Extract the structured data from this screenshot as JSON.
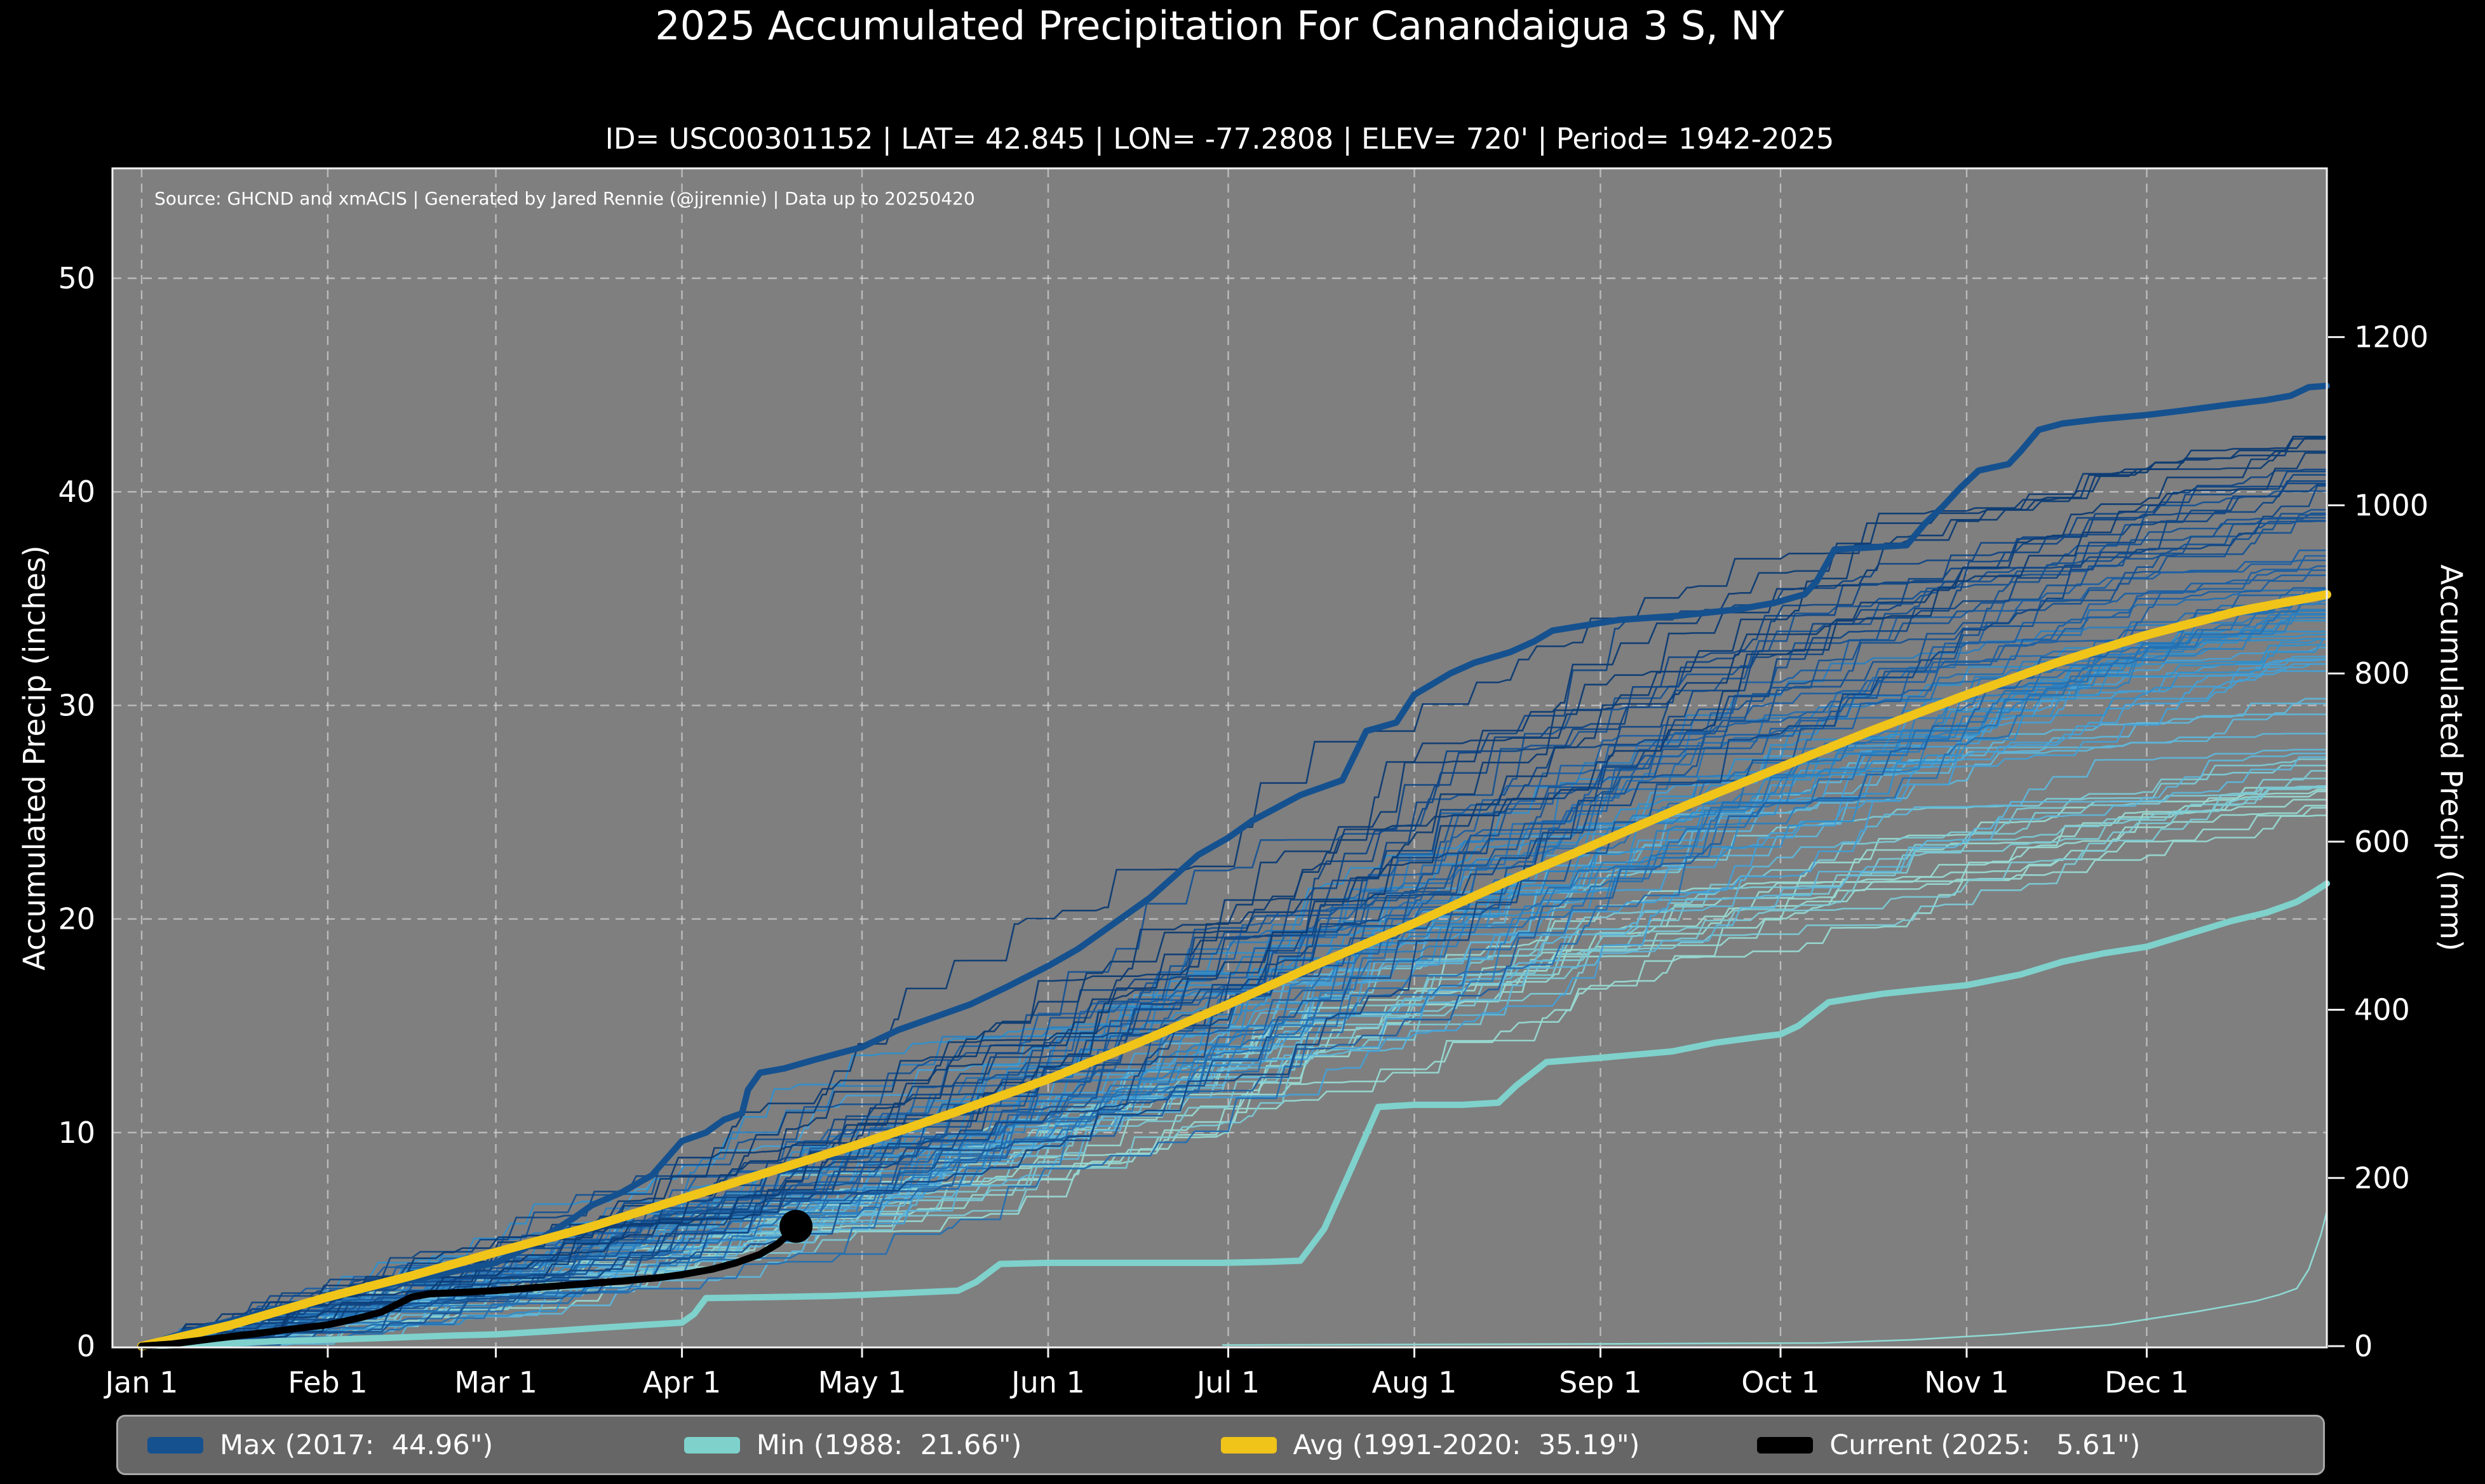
{
  "header": {
    "title": "2025 Accumulated Precipitation For Canandaigua 3 S, NY",
    "subtitle": "ID= USC00301152 | LAT= 42.845 | LON= -77.2808 | ELEV= 720' | Period= 1942-2025"
  },
  "colors": {
    "page_bg": "#000000",
    "plot_bg": "#7f7f7f",
    "gridline": "#dcdcdc",
    "spine": "#f2f2f2",
    "text": "#ffffff",
    "legend_bg": "#666666",
    "legend_border": "#a8a8a8",
    "max_line": "#15518f",
    "min_line": "#7fd1cc",
    "avg_line": "#f0c419",
    "current_line": "#000000"
  },
  "chart_data": {
    "type": "line",
    "title": "2025 Accumulated Precipitation For Canandaigua 3 S, NY",
    "subtitle": "ID= USC00301152 | LAT= 42.845 | LON= -77.2808 | ELEV= 720' | Period= 1942-2025",
    "source_note": "Source: GHCND and xmACIS | Generated by Jared Rennie (@jjrennie) | Data up to 20250420",
    "xlabel": "",
    "ylabel_left": "Accumulated Precip (inches)",
    "ylabel_right": "Accumulated Precip (mm)",
    "x_axis": {
      "tick_labels": [
        "Jan 1",
        "Feb 1",
        "Mar 1",
        "Apr 1",
        "May 1",
        "Jun 1",
        "Jul 1",
        "Aug 1",
        "Sep 1",
        "Oct 1",
        "Nov 1",
        "Dec 1"
      ],
      "tick_days": [
        0,
        31,
        59,
        90,
        120,
        151,
        181,
        212,
        243,
        273,
        304,
        334
      ],
      "total_days": 364
    },
    "y_left": {
      "ticks": [
        0,
        10,
        20,
        30,
        40,
        50
      ],
      "unit": "inches",
      "max_view": 55.2
    },
    "y_right": {
      "ticks": [
        0,
        200,
        400,
        600,
        800,
        1000,
        1200
      ],
      "unit": "mm"
    },
    "grid": true,
    "legend_position": "bottom",
    "series": [
      {
        "key": "max",
        "label": "Max (2017:  44.96\")",
        "color": "#15518f",
        "width": 10,
        "days": [
          0,
          8,
          15,
          22,
          31,
          38,
          45,
          52,
          59,
          64,
          68,
          72,
          75,
          80,
          85,
          90,
          94,
          97,
          100,
          101,
          103,
          107,
          112,
          120,
          126,
          132,
          138,
          144,
          151,
          156,
          160,
          164,
          168,
          172,
          176,
          181,
          185,
          189,
          193,
          198,
          200,
          204,
          209,
          212,
          215,
          218,
          222,
          228,
          232,
          235,
          246,
          256,
          266,
          272,
          277,
          279,
          282,
          294,
          297,
          300,
          303,
          306,
          311,
          313,
          316,
          320,
          326,
          334,
          340,
          348,
          354,
          358,
          361,
          364
        ],
        "values": [
          0,
          0.7,
          1.2,
          1.7,
          2.3,
          2.7,
          3.1,
          3.5,
          3.9,
          4.6,
          5.3,
          6.0,
          6.6,
          7.2,
          8.0,
          9.6,
          10.0,
          10.6,
          10.9,
          12.0,
          12.8,
          13.0,
          13.4,
          14.0,
          14.8,
          15.4,
          16.0,
          16.8,
          17.8,
          18.6,
          19.4,
          20.2,
          21.0,
          22.0,
          23.0,
          23.8,
          24.6,
          25.2,
          25.8,
          26.3,
          26.5,
          28.8,
          29.2,
          30.5,
          31.0,
          31.5,
          32.0,
          32.5,
          33.0,
          33.5,
          34.0,
          34.2,
          34.5,
          34.8,
          35.2,
          35.8,
          37.3,
          37.5,
          38.5,
          39.3,
          40.2,
          41.0,
          41.3,
          41.9,
          42.9,
          43.2,
          43.4,
          43.6,
          43.8,
          44.1,
          44.3,
          44.5,
          44.9,
          44.96
        ]
      },
      {
        "key": "min",
        "label": "Min (1988:  21.66\")",
        "color": "#7fd1cc",
        "width": 10,
        "days": [
          0,
          12,
          24,
          31,
          42,
          52,
          59,
          68,
          76,
          84,
          90,
          92,
          94,
          105,
          115,
          120,
          128,
          136,
          139,
          143,
          151,
          162,
          172,
          180,
          188,
          193,
          197,
          201,
          206,
          212,
          220,
          226,
          229,
          234,
          243,
          255,
          262,
          270,
          273,
          276,
          281,
          290,
          297,
          304,
          313,
          320,
          327,
          334,
          341,
          348,
          354,
          359,
          362,
          364
        ],
        "values": [
          0,
          0.1,
          0.25,
          0.3,
          0.4,
          0.5,
          0.55,
          0.7,
          0.85,
          1.0,
          1.1,
          1.5,
          2.25,
          2.3,
          2.35,
          2.4,
          2.5,
          2.6,
          3.0,
          3.85,
          3.9,
          3.9,
          3.9,
          3.9,
          3.95,
          4.0,
          5.5,
          8.0,
          11.2,
          11.3,
          11.3,
          11.4,
          12.2,
          13.3,
          13.5,
          13.8,
          14.2,
          14.5,
          14.6,
          15.0,
          16.1,
          16.5,
          16.7,
          16.9,
          17.4,
          18.0,
          18.4,
          18.7,
          19.3,
          19.9,
          20.3,
          20.8,
          21.3,
          21.66
        ]
      },
      {
        "key": "avg",
        "label": "Avg (1991-2020:  35.19\")",
        "color": "#f0c419",
        "width": 14,
        "days": [
          0,
          15,
          31,
          45,
          59,
          75,
          90,
          105,
          120,
          135,
          151,
          166,
          181,
          196,
          212,
          227,
          243,
          258,
          273,
          288,
          304,
          319,
          334,
          349,
          364
        ],
        "values": [
          0,
          1.0,
          2.3,
          3.3,
          4.4,
          5.6,
          6.9,
          8.2,
          9.5,
          10.9,
          12.5,
          14.2,
          16.0,
          17.9,
          19.8,
          21.7,
          23.6,
          25.4,
          27.1,
          28.8,
          30.5,
          32.0,
          33.3,
          34.4,
          35.19
        ]
      },
      {
        "key": "current",
        "label": "Current (2025:   5.61\")",
        "color": "#000000",
        "width": 11,
        "end_dot": true,
        "end_dot_radius": 26,
        "days": [
          0,
          5,
          12,
          18,
          25,
          31,
          36,
          40,
          45,
          48,
          59,
          66,
          73,
          80,
          86,
          90,
          95,
          99,
          103,
          106,
          108,
          109
        ],
        "values": [
          0,
          0.1,
          0.35,
          0.55,
          0.8,
          1.0,
          1.3,
          1.6,
          2.3,
          2.45,
          2.6,
          2.75,
          2.9,
          3.05,
          3.2,
          3.35,
          3.6,
          3.9,
          4.3,
          4.8,
          5.3,
          5.61
        ]
      }
    ],
    "background_years": {
      "description": "Thin lines: each year 1942-2024, colored light teal (low totals) to dark navy (high totals)",
      "count": 76,
      "seed": 20250420,
      "final_min": 22.5,
      "final_max": 42.6,
      "line_width": 2.6,
      "palette": [
        "#98d9d2",
        "#7cc9d4",
        "#5fb6d9",
        "#45a0d6",
        "#3090cc",
        "#2b7fc0",
        "#2470b2",
        "#1d60a3",
        "#175394",
        "#114785",
        "#0d3c74"
      ]
    },
    "partial_year": {
      "color": "#8fd8d2",
      "width": 2.6,
      "days": [
        180,
        240,
        280,
        295,
        310,
        320,
        328,
        335,
        342,
        348,
        352,
        356,
        359,
        361,
        363,
        364
      ],
      "values": [
        0.05,
        0.1,
        0.15,
        0.3,
        0.55,
        0.8,
        1.0,
        1.3,
        1.6,
        1.9,
        2.1,
        2.4,
        2.7,
        3.6,
        5.2,
        6.3
      ]
    }
  },
  "legend": {
    "items": [
      {
        "label": "Max (2017:  44.96\")"
      },
      {
        "label": "Min (1988:  21.66\")"
      },
      {
        "label": "Avg (1991-2020:  35.19\")"
      },
      {
        "label": "Current (2025:   5.61\")"
      }
    ]
  }
}
